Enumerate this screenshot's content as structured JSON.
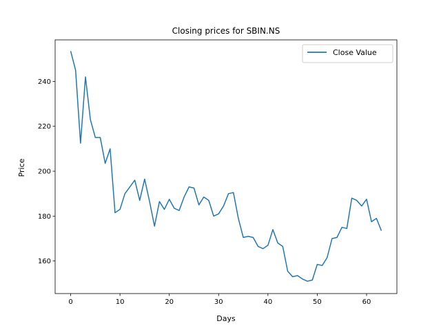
{
  "chart_data": {
    "type": "line",
    "title": "Closing prices for SBIN.NS",
    "xlabel": "Days",
    "ylabel": "Price",
    "xlim": [
      -3.15,
      66.15
    ],
    "ylim": [
      145.5,
      258.5
    ],
    "xticks": [
      0,
      10,
      20,
      30,
      40,
      50,
      60
    ],
    "yticks": [
      160,
      180,
      200,
      220,
      240
    ],
    "legend_position": "top-right",
    "grid": false,
    "series": [
      {
        "name": "Close Value",
        "color": "#1f77b4",
        "x": [
          0,
          1,
          2,
          3,
          4,
          5,
          6,
          7,
          8,
          9,
          10,
          11,
          12,
          13,
          14,
          15,
          16,
          17,
          18,
          19,
          20,
          21,
          22,
          23,
          24,
          25,
          26,
          27,
          28,
          29,
          30,
          31,
          32,
          33,
          34,
          35,
          36,
          37,
          38,
          39,
          40,
          41,
          42,
          43,
          44,
          45,
          46,
          47,
          48,
          49,
          50,
          51,
          52,
          53,
          54,
          55,
          56,
          57,
          58,
          59,
          60,
          61,
          62,
          63
        ],
        "values": [
          253.5,
          245,
          212.5,
          242,
          223,
          215,
          215,
          203.5,
          210,
          181.5,
          183,
          190,
          193,
          196,
          187,
          196.5,
          186.5,
          175.5,
          186.5,
          183,
          187.5,
          183.5,
          182.5,
          188.5,
          193,
          192.5,
          185,
          188.5,
          187,
          180,
          181,
          184.5,
          190,
          190.5,
          179,
          170.5,
          171,
          170.5,
          166.5,
          165.5,
          167,
          174,
          168,
          166.5,
          155.5,
          153,
          153.5,
          152,
          151,
          151.5,
          158.5,
          158,
          161.5,
          170,
          170.5,
          175,
          174.5,
          188,
          187,
          184.5,
          187.5,
          177.5,
          179,
          173.5
        ]
      }
    ]
  }
}
